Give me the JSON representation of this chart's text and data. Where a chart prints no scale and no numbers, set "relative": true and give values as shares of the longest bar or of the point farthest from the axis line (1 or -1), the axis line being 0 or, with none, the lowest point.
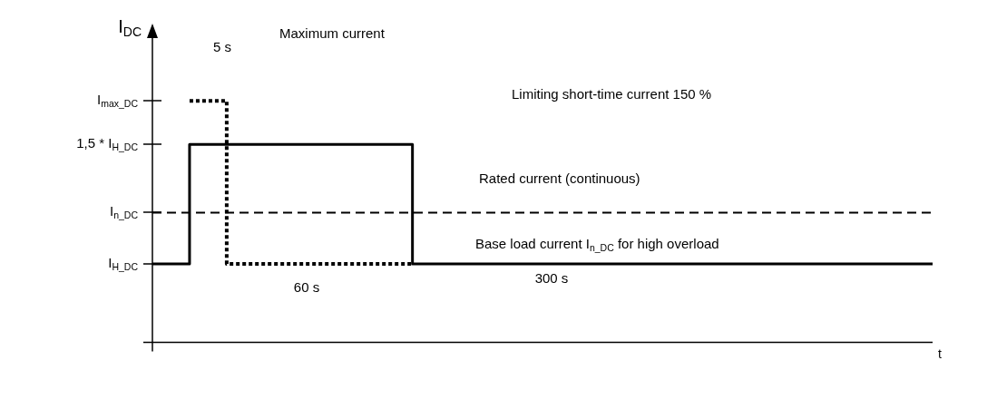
{
  "chart_data": {
    "type": "step",
    "ylabel": "I$_{DC}$",
    "xlabel": "t",
    "relative": true,
    "legend": false,
    "categories": [
      null,
      null,
      null,
      null,
      null,
      null,
      null,
      null,
      null,
      null,
      null,
      null,
      null,
      null,
      null,
      null,
      null,
      null,
      null,
      null,
      null,
      null
    ],
    "series": [
      {
        "color": "#000000",
        "line_style": "solid",
        "values": [
          0.325,
          0.82,
          0.82,
          0.82,
          0.82,
          0.82,
          0.82,
          0.325,
          0.325,
          0.325,
          0.325,
          0.325,
          0.325,
          0.325,
          0.325,
          0.325,
          0.325,
          0.325,
          0.325,
          0.325,
          0.325,
          0.325
        ]
      },
      {
        "color": "#000000",
        "line_style": "dotted",
        "values": [
          null,
          1,
          0.325,
          0.325,
          0.325,
          0.325,
          0.325,
          0.325,
          null,
          null,
          null,
          null,
          null,
          null,
          null,
          null,
          null,
          null,
          null,
          null,
          null,
          null
        ]
      }
    ],
    "ref_lines": [
      {
        "axis": "y",
        "value": 0.537,
        "color": "#000000",
        "line_style": "dashed"
      }
    ],
    "annotations": [
      "I$_{max_DC}$",
      "1,5 * I$_{H_DC}$",
      "I$_{n_DC}$",
      "I$_{H_DC}$",
      "Maximum current",
      "Limiting short-time current 150 %",
      "Rated current (continuous)",
      "Base load current I$_{n_DC}$ for high overload",
      "5 s",
      "60 s",
      "300 s"
    ]
  }
}
